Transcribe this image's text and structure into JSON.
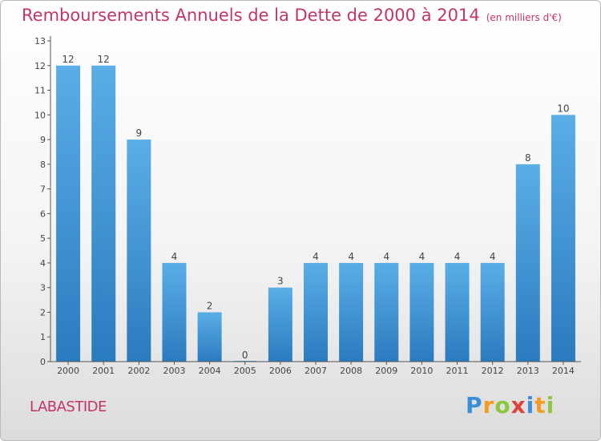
{
  "header": {
    "title": "Remboursements Annuels de la Dette de 2000 à 2014",
    "subtitle": "(en milliers d'€)"
  },
  "footer": {
    "commune": "LABASTIDE",
    "brand_letters": [
      {
        "char": "P",
        "color": "#3a8fd8"
      },
      {
        "char": "r",
        "color": "#f29b1f"
      },
      {
        "char": "o",
        "color": "#8dc63f"
      },
      {
        "char": "x",
        "color": "#e2403a"
      },
      {
        "char": "i",
        "color": "#3a8fd8"
      },
      {
        "char": "t",
        "color": "#f29b1f"
      },
      {
        "char": "i",
        "color": "#8dc63f"
      }
    ]
  },
  "chart_data": {
    "type": "bar",
    "categories": [
      "2000",
      "2001",
      "2002",
      "2003",
      "2004",
      "2005",
      "2006",
      "2007",
      "2008",
      "2009",
      "2010",
      "2011",
      "2012",
      "2013",
      "2014"
    ],
    "values": [
      12,
      12,
      9,
      4,
      2,
      0,
      3,
      4,
      4,
      4,
      4,
      4,
      4,
      8,
      10
    ],
    "ylim": [
      0,
      13
    ],
    "yticks": [
      0,
      1,
      2,
      3,
      4,
      5,
      6,
      7,
      8,
      9,
      10,
      11,
      12,
      13
    ],
    "data_labels": true,
    "grid": false,
    "colors": {
      "bar_light": "#5aaee6",
      "bar_dark": "#2a7bbf",
      "axis": "#555555",
      "text": "#444444",
      "title": "#c0356b"
    }
  }
}
